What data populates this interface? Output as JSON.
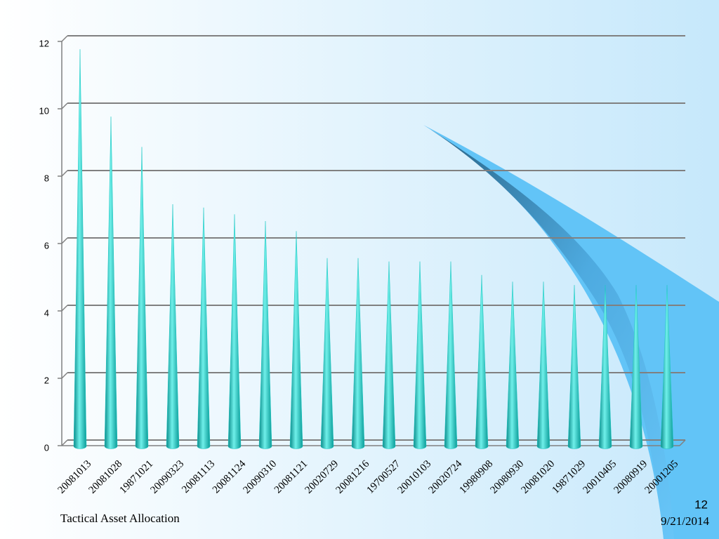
{
  "chart_data": {
    "type": "cone",
    "categories": [
      "20081013",
      "20081028",
      "19871021",
      "20090323",
      "20081113",
      "20081124",
      "20090310",
      "20081121",
      "20020729",
      "20081216",
      "19700527",
      "20010103",
      "20020724",
      "19980908",
      "20080930",
      "20081020",
      "19871029",
      "20010405",
      "20080919",
      "20001205"
    ],
    "values": [
      11.6,
      9.6,
      8.7,
      7.0,
      6.9,
      6.7,
      6.5,
      6.2,
      5.4,
      5.4,
      5.3,
      5.3,
      5.3,
      4.9,
      4.7,
      4.7,
      4.6,
      4.6,
      4.6,
      4.6
    ],
    "color": "#1ec8c4",
    "ylim": [
      0,
      12
    ],
    "yticks": [
      0,
      2,
      4,
      6,
      8,
      10,
      12
    ],
    "grid": true
  },
  "footer": {
    "text": "Tactical Asset Allocation",
    "page": "12",
    "date": "9/21/2014"
  }
}
